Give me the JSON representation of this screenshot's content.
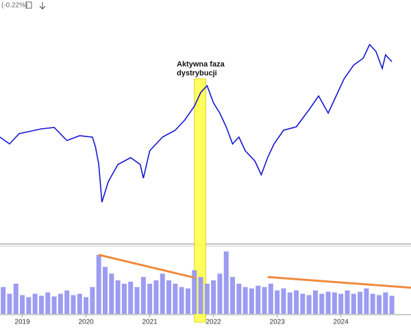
{
  "chart_data": [
    {
      "type": "line",
      "header": "(-0.22%)",
      "annotation": [
        "Aktywna faza",
        "dystrybucji"
      ],
      "highlight": {
        "x": [
          2021.7,
          2021.88
        ],
        "color": "#ffff44"
      },
      "xlim": [
        2018.65,
        2025.1
      ],
      "ylim": [
        0,
        360
      ],
      "series": [
        {
          "color": "#1414d2",
          "x": [
            2018.65,
            2018.8,
            2018.95,
            2019.1,
            2019.3,
            2019.5,
            2019.7,
            2019.9,
            2020.1,
            2020.15,
            2020.2,
            2020.25,
            2020.35,
            2020.5,
            2020.7,
            2020.85,
            2020.9,
            2021.0,
            2021.2,
            2021.4,
            2021.55,
            2021.7,
            2021.8,
            2021.9,
            2022.0,
            2022.1,
            2022.2,
            2022.3,
            2022.4,
            2022.5,
            2022.65,
            2022.75,
            2022.85,
            2022.95,
            2023.1,
            2023.3,
            2023.5,
            2023.65,
            2023.8,
            2023.9,
            2024.05,
            2024.2,
            2024.35,
            2024.45,
            2024.55,
            2024.65,
            2024.7,
            2024.8
          ],
          "values": [
            160,
            150,
            165,
            168,
            172,
            174,
            155,
            162,
            160,
            145,
            120,
            65,
            95,
            120,
            130,
            120,
            100,
            140,
            160,
            170,
            185,
            205,
            225,
            235,
            210,
            195,
            175,
            150,
            160,
            140,
            125,
            105,
            130,
            150,
            170,
            175,
            200,
            220,
            195,
            215,
            245,
            265,
            275,
            295,
            285,
            260,
            280,
            270
          ]
        }
      ]
    },
    {
      "type": "bar",
      "xlim": [
        2018.65,
        2025.1
      ],
      "ylim": [
        0,
        100
      ],
      "xticks": [
        2019,
        2020,
        2021,
        2022,
        2023,
        2024
      ],
      "color": "#9c9cf2",
      "x": [
        2018.7,
        2018.8,
        2018.9,
        2019.0,
        2019.1,
        2019.2,
        2019.3,
        2019.4,
        2019.5,
        2019.6,
        2019.7,
        2019.8,
        2019.9,
        2020.0,
        2020.1,
        2020.2,
        2020.3,
        2020.4,
        2020.5,
        2020.6,
        2020.7,
        2020.8,
        2020.9,
        2021.0,
        2021.1,
        2021.2,
        2021.3,
        2021.4,
        2021.5,
        2021.6,
        2021.7,
        2021.8,
        2021.9,
        2022.0,
        2022.1,
        2022.2,
        2022.3,
        2022.4,
        2022.5,
        2022.6,
        2022.7,
        2022.8,
        2022.9,
        2023.0,
        2023.1,
        2023.2,
        2023.3,
        2023.4,
        2023.5,
        2023.6,
        2023.7,
        2023.8,
        2023.9,
        2024.0,
        2024.1,
        2024.2,
        2024.3,
        2024.4,
        2024.5,
        2024.6,
        2024.7,
        2024.8
      ],
      "values": [
        40,
        30,
        45,
        28,
        25,
        30,
        27,
        32,
        26,
        30,
        35,
        28,
        30,
        25,
        40,
        88,
        70,
        60,
        50,
        45,
        48,
        40,
        55,
        45,
        50,
        60,
        50,
        45,
        40,
        38,
        65,
        55,
        45,
        50,
        60,
        93,
        55,
        45,
        40,
        38,
        42,
        40,
        45,
        35,
        38,
        32,
        35,
        30,
        28,
        35,
        30,
        33,
        32,
        30,
        35,
        30,
        33,
        38,
        30,
        28,
        32,
        27
      ],
      "trendlines": {
        "color": "#f08a3c",
        "lines": [
          {
            "x": [
              2020.2,
              2021.7
            ],
            "values": [
              88,
              54
            ]
          },
          {
            "x": [
              2022.85,
              2025.1
            ],
            "values": [
              55,
              39
            ]
          }
        ]
      }
    }
  ]
}
